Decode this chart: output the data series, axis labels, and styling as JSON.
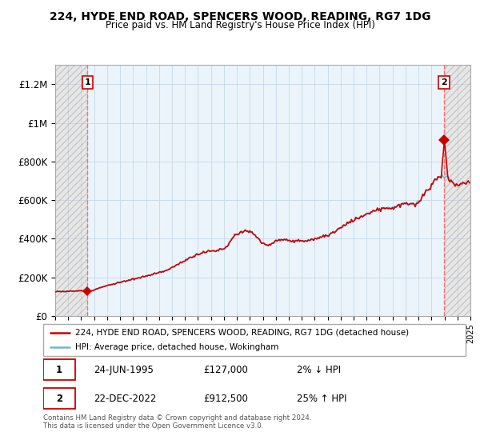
{
  "title": "224, HYDE END ROAD, SPENCERS WOOD, READING, RG7 1DG",
  "subtitle": "Price paid vs. HM Land Registry's House Price Index (HPI)",
  "hpi_color": "#7ab0d4",
  "price_color": "#cc0000",
  "dashed_color": "#ff6666",
  "ylim": [
    0,
    1300000
  ],
  "yticks": [
    0,
    200000,
    400000,
    600000,
    800000,
    1000000,
    1200000
  ],
  "ytick_labels": [
    "£0",
    "£200K",
    "£400K",
    "£600K",
    "£800K",
    "£1M",
    "£1.2M"
  ],
  "sale1_year": 1995.48,
  "sale1_price": 127000,
  "sale2_year": 2022.97,
  "sale2_price": 912500,
  "legend_label1": "224, HYDE END ROAD, SPENCERS WOOD, READING, RG7 1DG (detached house)",
  "legend_label2": "HPI: Average price, detached house, Wokingham",
  "annotation1_label": "1",
  "annotation1_date": "24-JUN-1995",
  "annotation1_price": "£127,000",
  "annotation1_hpi": "2% ↓ HPI",
  "annotation2_label": "2",
  "annotation2_date": "22-DEC-2022",
  "annotation2_price": "£912,500",
  "annotation2_hpi": "25% ↑ HPI",
  "footer": "Contains HM Land Registry data © Crown copyright and database right 2024.\nThis data is licensed under the Open Government Licence v3.0.",
  "xmin": 1993,
  "xmax": 2025
}
